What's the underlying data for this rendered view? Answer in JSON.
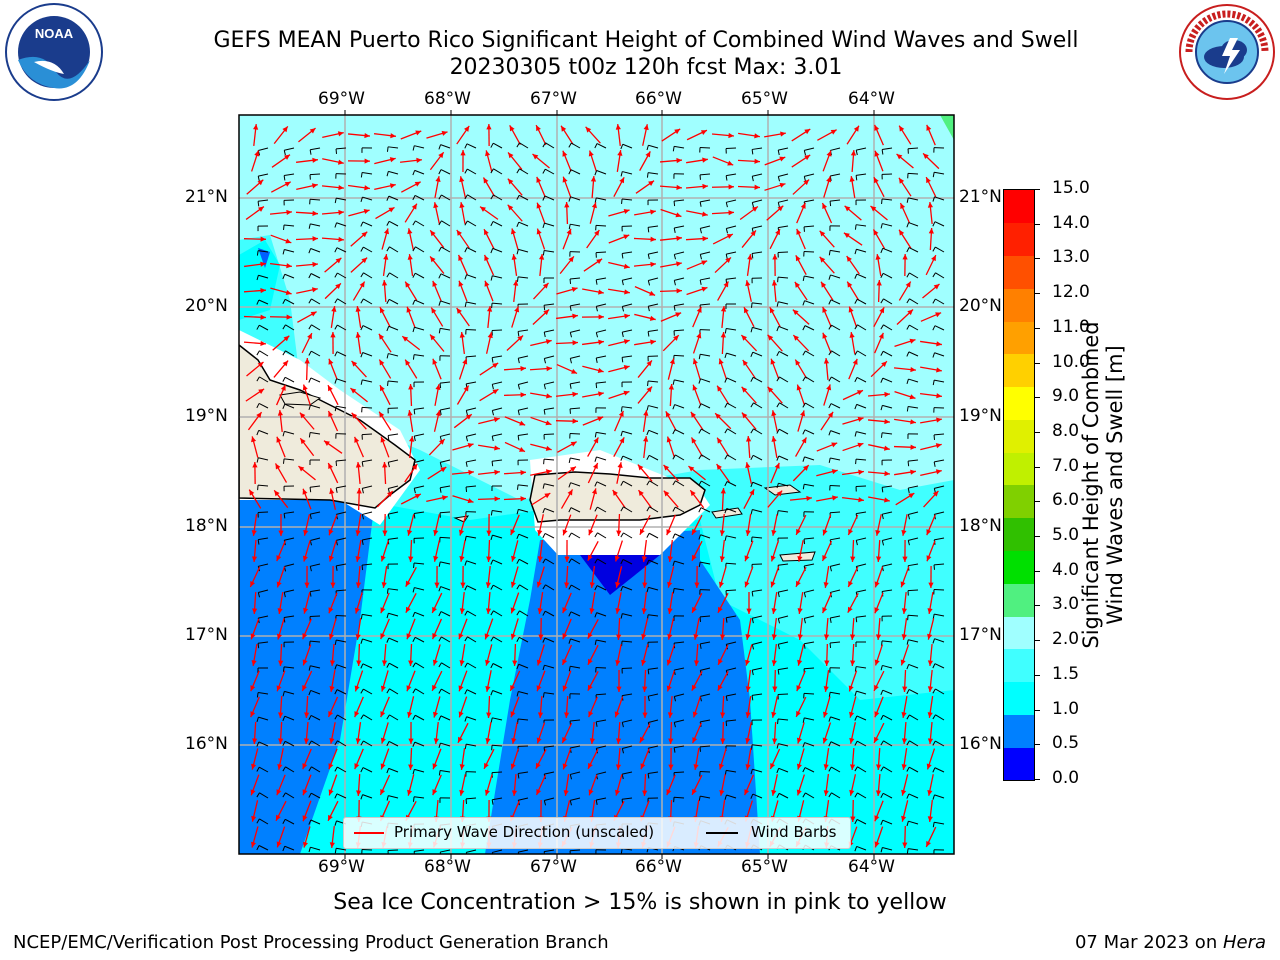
{
  "header": {
    "title_line1": "GEFS MEAN Puerto Rico Significant Height of Combined Wind Waves and Swell",
    "title_line2": "20230305 t00z 120h fcst   Max: 3.01"
  },
  "logos": {
    "left": {
      "text": "NOAA",
      "ring_text": "NATIONAL OCEANIC AND ATMOSPHERIC ADMINISTRATION · U.S. DEPARTMENT OF COMMERCE"
    },
    "right": {
      "ring_text": "NATIONAL WEATHER SERVICE"
    }
  },
  "map": {
    "lon_labels": [
      "69°W",
      "68°W",
      "67°W",
      "66°W",
      "65°W",
      "64°W"
    ],
    "lat_labels": [
      "21°N",
      "20°N",
      "19°N",
      "18°N",
      "17°N",
      "16°N"
    ],
    "land_color": "#efebdc",
    "wave_arrow_color": "#ff0000",
    "barb_color": "#000000"
  },
  "legend": {
    "wave_label": "Primary Wave Direction (unscaled)",
    "barb_label": "Wind Barbs"
  },
  "colorbar": {
    "label_line1": "Significant Height of Combined",
    "label_line2": "Wind Waves and Swell [m]",
    "ticks": [
      "15.0",
      "14.0",
      "13.0",
      "12.0",
      "11.0",
      "10.0",
      "9.0",
      "8.0",
      "7.0",
      "6.0",
      "5.0",
      "4.0",
      "3.0",
      "2.0",
      "1.5",
      "1.0",
      "0.5",
      "0.0"
    ],
    "colors": [
      "#0000ff",
      "#0080ff",
      "#00ffff",
      "#40ffff",
      "#a0ffff",
      "#50f080",
      "#00e000",
      "#30c000",
      "#80d000",
      "#c0f000",
      "#e0f000",
      "#ffff00",
      "#ffd000",
      "#ffa000",
      "#ff8000",
      "#ff5000",
      "#ff2000",
      "#ff0000"
    ]
  },
  "note": "Sea Ice Concentration > 15% is shown in pink to yellow",
  "footer": {
    "left": "NCEP/EMC/Verification Post Processing Product Generation Branch",
    "date": "07 Mar 2023 on ",
    "host": "Hera"
  }
}
